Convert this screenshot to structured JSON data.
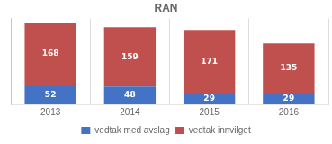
{
  "chart_data": {
    "type": "bar",
    "title": "RAN",
    "categories": [
      "2013",
      "2014",
      "2015",
      "2016"
    ],
    "series": [
      {
        "name": "vedtak med avslag",
        "color": "#4472c4",
        "values": [
          52,
          48,
          29,
          29
        ]
      },
      {
        "name": "vedtak innvilget",
        "color": "#c0504d",
        "values": [
          168,
          159,
          171,
          135
        ]
      }
    ],
    "stacked": true,
    "ylim": [
      0,
      231
    ],
    "tick_labels": "x",
    "grid": true,
    "legend": "bottom",
    "data_labels": true
  }
}
